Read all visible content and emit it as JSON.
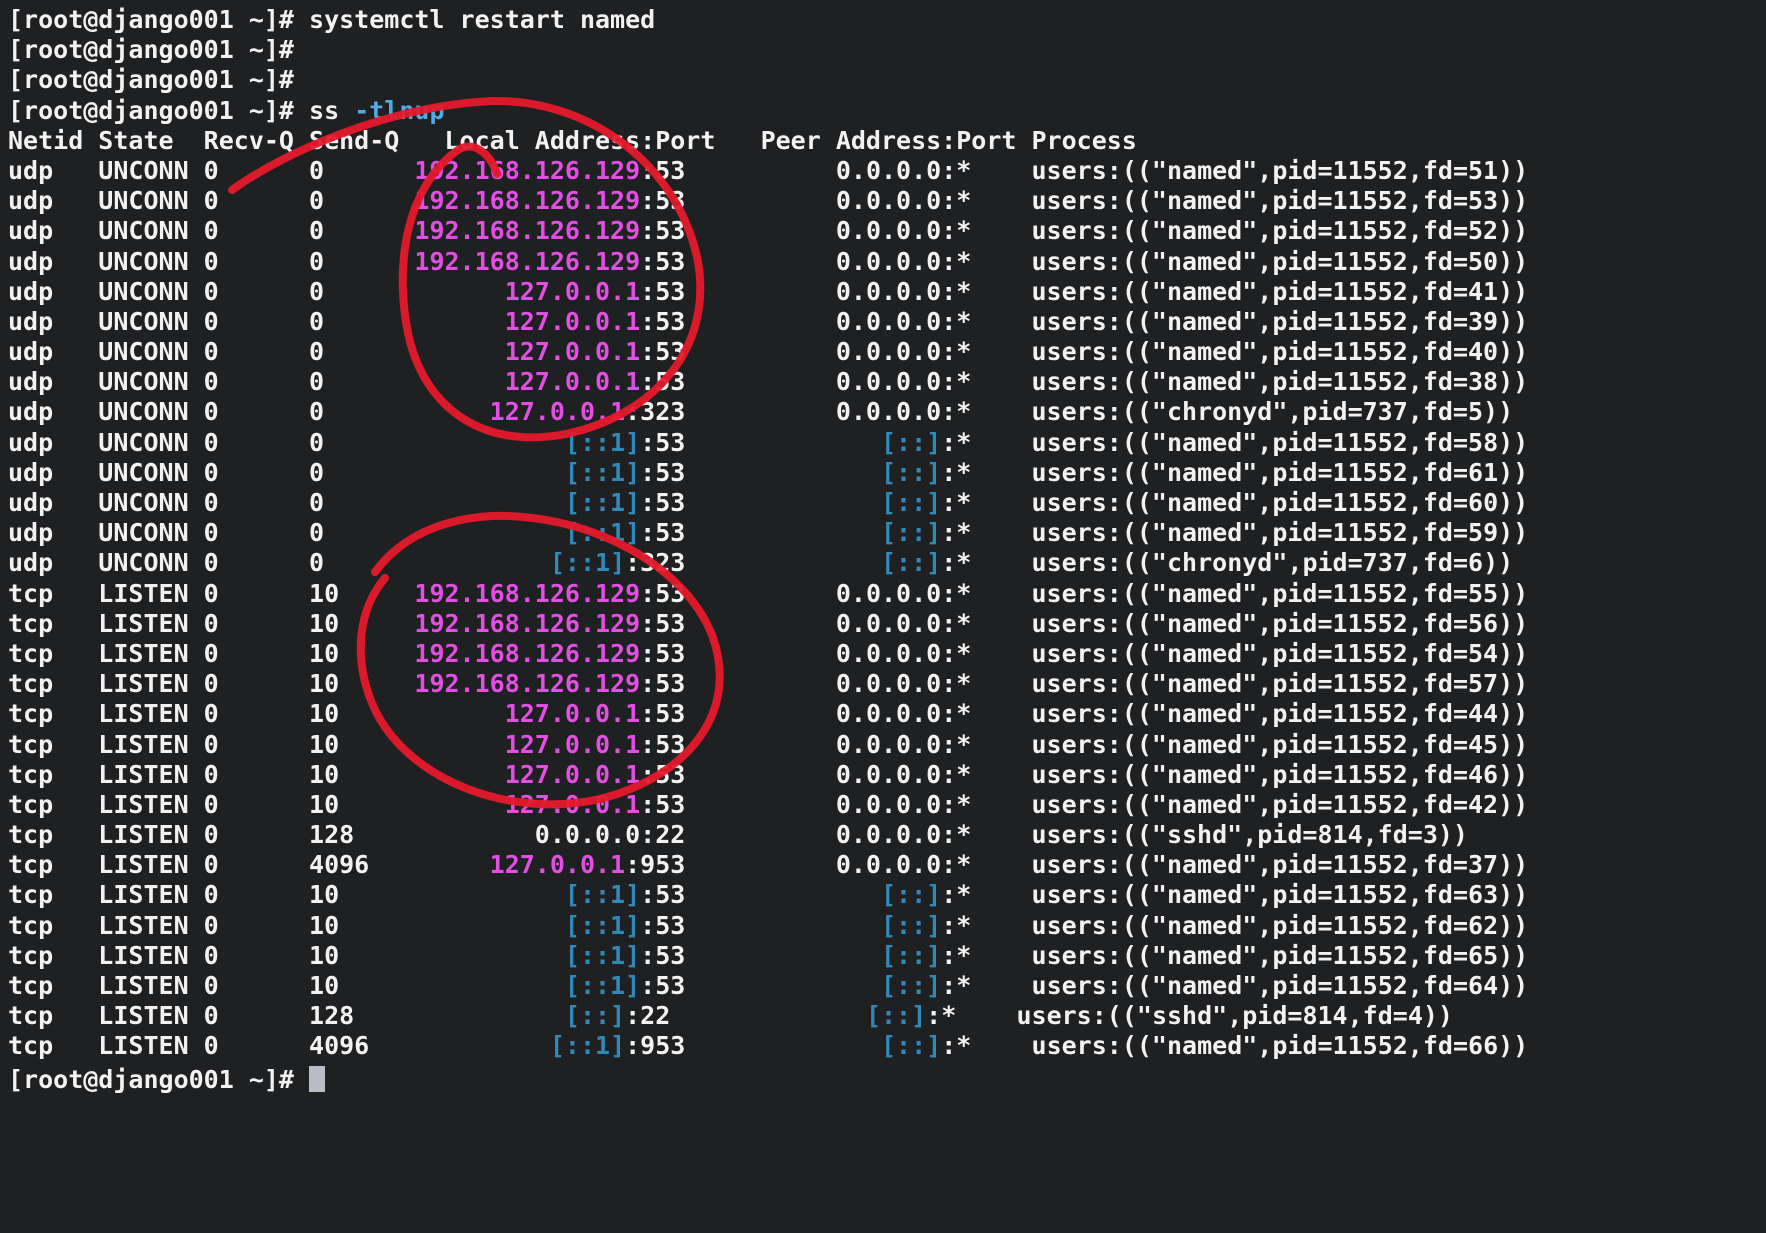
{
  "terminal": {
    "colors": {
      "background": "#1f2022",
      "foreground": "#f2f2f2",
      "magenta": "#e24fe2",
      "blue": "#3189ba",
      "cyan": "#52a9e4",
      "cursor": "#b8bcc4"
    },
    "prompt": "[root@django001 ~]#",
    "commands": [
      "systemctl restart named",
      "ss -tlnup"
    ],
    "lines": [
      [
        [
          "w",
          "[root@django001 ~]# systemctl restart named"
        ]
      ],
      [
        [
          "w",
          "[root@django001 ~]#"
        ]
      ],
      [
        [
          "w",
          "[root@django001 ~]#"
        ]
      ],
      [
        [
          "w",
          "[root@django001 ~]# ss "
        ],
        [
          "c",
          "-tlnup"
        ]
      ],
      [
        [
          "w",
          "Netid State  Recv-Q Send-Q   Local Address:Port   Peer Address:Port Process"
        ]
      ],
      [
        [
          "w",
          "udp   UNCONN 0      0      "
        ],
        [
          "m",
          "192.168.126.129"
        ],
        [
          "w",
          ":53          0.0.0.0:*    users:((\"named\",pid=11552,fd=51))"
        ]
      ],
      [
        [
          "w",
          "udp   UNCONN 0      0      "
        ],
        [
          "m",
          "192.168.126.129"
        ],
        [
          "w",
          ":53          0.0.0.0:*    users:((\"named\",pid=11552,fd=53))"
        ]
      ],
      [
        [
          "w",
          "udp   UNCONN 0      0      "
        ],
        [
          "m",
          "192.168.126.129"
        ],
        [
          "w",
          ":53          0.0.0.0:*    users:((\"named\",pid=11552,fd=52))"
        ]
      ],
      [
        [
          "w",
          "udp   UNCONN 0      0      "
        ],
        [
          "m",
          "192.168.126.129"
        ],
        [
          "w",
          ":53          0.0.0.0:*    users:((\"named\",pid=11552,fd=50))"
        ]
      ],
      [
        [
          "w",
          "udp   UNCONN 0      0            "
        ],
        [
          "m",
          "127.0.0.1"
        ],
        [
          "w",
          ":53          0.0.0.0:*    users:((\"named\",pid=11552,fd=41))"
        ]
      ],
      [
        [
          "w",
          "udp   UNCONN 0      0            "
        ],
        [
          "m",
          "127.0.0.1"
        ],
        [
          "w",
          ":53          0.0.0.0:*    users:((\"named\",pid=11552,fd=39))"
        ]
      ],
      [
        [
          "w",
          "udp   UNCONN 0      0            "
        ],
        [
          "m",
          "127.0.0.1"
        ],
        [
          "w",
          ":53          0.0.0.0:*    users:((\"named\",pid=11552,fd=40))"
        ]
      ],
      [
        [
          "w",
          "udp   UNCONN 0      0            "
        ],
        [
          "m",
          "127.0.0.1"
        ],
        [
          "w",
          ":53          0.0.0.0:*    users:((\"named\",pid=11552,fd=38))"
        ]
      ],
      [
        [
          "w",
          "udp   UNCONN 0      0           "
        ],
        [
          "m",
          "127.0.0.1"
        ],
        [
          "w",
          ":323          0.0.0.0:*    users:((\"chronyd\",pid=737,fd=5))"
        ]
      ],
      [
        [
          "w",
          "udp   UNCONN 0      0                "
        ],
        [
          "b",
          "[::1]"
        ],
        [
          "w",
          ":53             "
        ],
        [
          "b",
          "[::]"
        ],
        [
          "w",
          ":*    users:((\"named\",pid=11552,fd=58))"
        ]
      ],
      [
        [
          "w",
          "udp   UNCONN 0      0                "
        ],
        [
          "b",
          "[::1]"
        ],
        [
          "w",
          ":53             "
        ],
        [
          "b",
          "[::]"
        ],
        [
          "w",
          ":*    users:((\"named\",pid=11552,fd=61))"
        ]
      ],
      [
        [
          "w",
          "udp   UNCONN 0      0                "
        ],
        [
          "b",
          "[::1]"
        ],
        [
          "w",
          ":53             "
        ],
        [
          "b",
          "[::]"
        ],
        [
          "w",
          ":*    users:((\"named\",pid=11552,fd=60))"
        ]
      ],
      [
        [
          "w",
          "udp   UNCONN 0      0                "
        ],
        [
          "b",
          "[::1]"
        ],
        [
          "w",
          ":53             "
        ],
        [
          "b",
          "[::]"
        ],
        [
          "w",
          ":*    users:((\"named\",pid=11552,fd=59))"
        ]
      ],
      [
        [
          "w",
          "udp   UNCONN 0      0               "
        ],
        [
          "b",
          "[::1]"
        ],
        [
          "w",
          ":323             "
        ],
        [
          "b",
          "[::]"
        ],
        [
          "w",
          ":*    users:((\"chronyd\",pid=737,fd=6))"
        ]
      ],
      [
        [
          "w",
          "tcp   LISTEN 0      10     "
        ],
        [
          "m",
          "192.168.126.129"
        ],
        [
          "w",
          ":53          0.0.0.0:*    users:((\"named\",pid=11552,fd=55))"
        ]
      ],
      [
        [
          "w",
          "tcp   LISTEN 0      10     "
        ],
        [
          "m",
          "192.168.126.129"
        ],
        [
          "w",
          ":53          0.0.0.0:*    users:((\"named\",pid=11552,fd=56))"
        ]
      ],
      [
        [
          "w",
          "tcp   LISTEN 0      10     "
        ],
        [
          "m",
          "192.168.126.129"
        ],
        [
          "w",
          ":53          0.0.0.0:*    users:((\"named\",pid=11552,fd=54))"
        ]
      ],
      [
        [
          "w",
          "tcp   LISTEN 0      10     "
        ],
        [
          "m",
          "192.168.126.129"
        ],
        [
          "w",
          ":53          0.0.0.0:*    users:((\"named\",pid=11552,fd=57))"
        ]
      ],
      [
        [
          "w",
          "tcp   LISTEN 0      10           "
        ],
        [
          "m",
          "127.0.0.1"
        ],
        [
          "w",
          ":53          0.0.0.0:*    users:((\"named\",pid=11552,fd=44))"
        ]
      ],
      [
        [
          "w",
          "tcp   LISTEN 0      10           "
        ],
        [
          "m",
          "127.0.0.1"
        ],
        [
          "w",
          ":53          0.0.0.0:*    users:((\"named\",pid=11552,fd=45))"
        ]
      ],
      [
        [
          "w",
          "tcp   LISTEN 0      10           "
        ],
        [
          "m",
          "127.0.0.1"
        ],
        [
          "w",
          ":53          0.0.0.0:*    users:((\"named\",pid=11552,fd=46))"
        ]
      ],
      [
        [
          "w",
          "tcp   LISTEN 0      10           "
        ],
        [
          "m",
          "127.0.0.1"
        ],
        [
          "w",
          ":53          0.0.0.0:*    users:((\"named\",pid=11552,fd=42))"
        ]
      ],
      [
        [
          "w",
          "tcp   LISTEN 0      128            0.0.0.0:22          0.0.0.0:*    users:((\"sshd\",pid=814,fd=3))"
        ]
      ],
      [
        [
          "w",
          "tcp   LISTEN 0      4096        "
        ],
        [
          "m",
          "127.0.0.1"
        ],
        [
          "w",
          ":953          0.0.0.0:*    users:((\"named\",pid=11552,fd=37))"
        ]
      ],
      [
        [
          "w",
          "tcp   LISTEN 0      10               "
        ],
        [
          "b",
          "[::1]"
        ],
        [
          "w",
          ":53             "
        ],
        [
          "b",
          "[::]"
        ],
        [
          "w",
          ":*    users:((\"named\",pid=11552,fd=63))"
        ]
      ],
      [
        [
          "w",
          "tcp   LISTEN 0      10               "
        ],
        [
          "b",
          "[::1]"
        ],
        [
          "w",
          ":53             "
        ],
        [
          "b",
          "[::]"
        ],
        [
          "w",
          ":*    users:((\"named\",pid=11552,fd=62))"
        ]
      ],
      [
        [
          "w",
          "tcp   LISTEN 0      10               "
        ],
        [
          "b",
          "[::1]"
        ],
        [
          "w",
          ":53             "
        ],
        [
          "b",
          "[::]"
        ],
        [
          "w",
          ":*    users:((\"named\",pid=11552,fd=65))"
        ]
      ],
      [
        [
          "w",
          "tcp   LISTEN 0      10               "
        ],
        [
          "b",
          "[::1]"
        ],
        [
          "w",
          ":53             "
        ],
        [
          "b",
          "[::]"
        ],
        [
          "w",
          ":*    users:((\"named\",pid=11552,fd=64))"
        ]
      ],
      [
        [
          "w",
          "tcp   LISTEN 0      128              "
        ],
        [
          "b",
          "[::]"
        ],
        [
          "w",
          ":22             "
        ],
        [
          "b",
          "[::]"
        ],
        [
          "w",
          ":*    users:((\"sshd\",pid=814,fd=4))"
        ]
      ],
      [
        [
          "w",
          "tcp   LISTEN 0      4096            "
        ],
        [
          "b",
          "[::1]"
        ],
        [
          "w",
          ":953             "
        ],
        [
          "b",
          "[::]"
        ],
        [
          "w",
          ":*    users:((\"named\",pid=11552,fd=66))"
        ]
      ],
      [
        [
          "w",
          "[root@django001 ~]# "
        ]
      ]
    ]
  },
  "annotations": {
    "color": "#e5192c",
    "items": [
      "hand-drawn circle around udp local addresses",
      "hand-drawn circle around tcp local addresses"
    ]
  }
}
